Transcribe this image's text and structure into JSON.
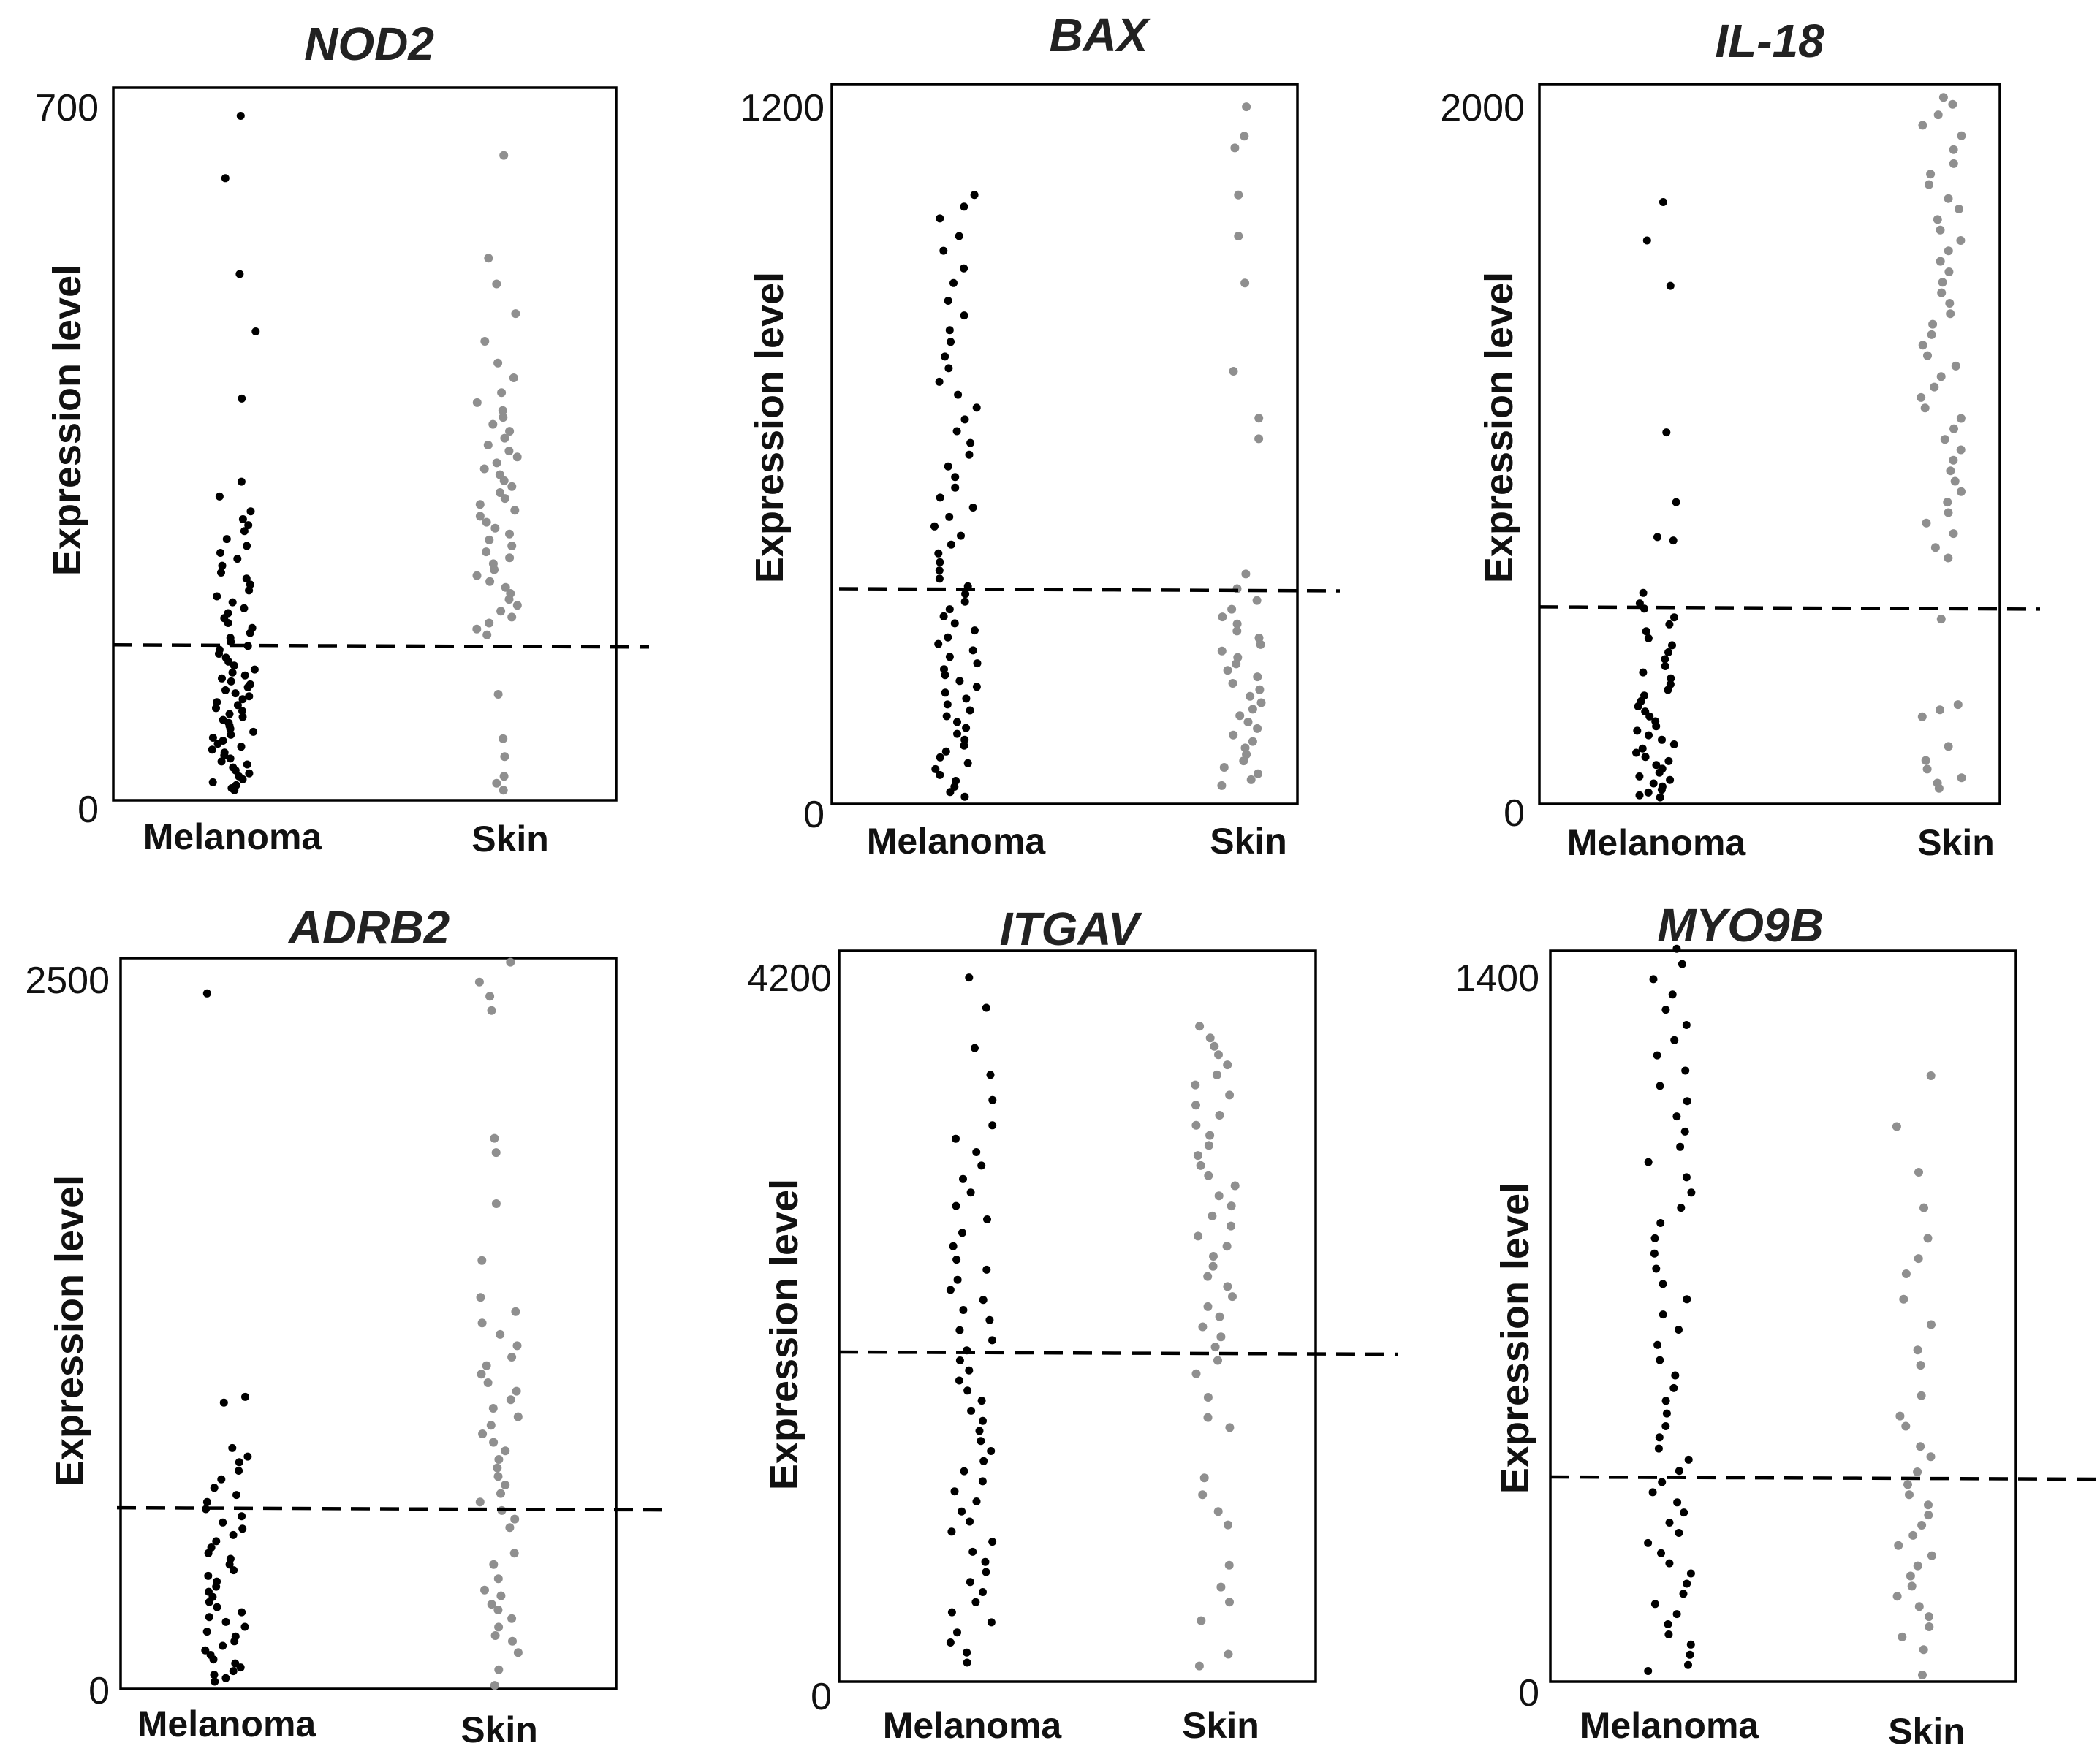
{
  "chart_data": [
    {
      "type": "scatter",
      "title": "NOD2",
      "ylabel": "Expression level",
      "categories": [
        "Melanoma",
        "Skin"
      ],
      "ylim": [
        0,
        700
      ],
      "yticks": [
        "0",
        "700"
      ],
      "threshold": 155,
      "colors": {
        "Melanoma": "#000000",
        "Skin": "#8f8f8f"
      },
      "series": [
        {
          "name": "Melanoma",
          "values": [
            690,
            627,
            530,
            472,
            404,
            320,
            305,
            290,
            282,
            276,
            270,
            262,
            255,
            248,
            242,
            235,
            228,
            222,
            216,
            210,
            204,
            198,
            192,
            187,
            182,
            177,
            172,
            167,
            162,
            158,
            154,
            150,
            146,
            142,
            138,
            134,
            130,
            127,
            124,
            121,
            118,
            115,
            112,
            109,
            106,
            103,
            100,
            97,
            94,
            91,
            88,
            85,
            82,
            79,
            76,
            73,
            70,
            67,
            64,
            61,
            58,
            55,
            52,
            49,
            46,
            43,
            40,
            37,
            34,
            31,
            28,
            25,
            22,
            19,
            16,
            13,
            10,
            8
          ]
        },
        {
          "name": "Skin",
          "values": [
            650,
            546,
            520,
            490,
            462,
            440,
            425,
            410,
            400,
            392,
            385,
            378,
            371,
            364,
            357,
            351,
            345,
            339,
            333,
            327,
            321,
            315,
            309,
            303,
            297,
            291,
            285,
            279,
            273,
            267,
            261,
            255,
            249,
            243,
            237,
            231,
            225,
            219,
            213,
            207,
            201,
            195,
            189,
            183,
            177,
            171,
            165,
            105,
            60,
            42,
            22,
            15,
            8
          ]
        }
      ]
    },
    {
      "type": "scatter",
      "title": "BAX",
      "ylabel": "Expression level",
      "categories": [
        "Melanoma",
        "Skin"
      ],
      "ylim": [
        0,
        1200
      ],
      "yticks": [
        "0",
        "1200"
      ],
      "threshold": 360,
      "colors": {
        "Melanoma": "#000000",
        "Skin": "#8f8f8f"
      },
      "series": [
        {
          "name": "Melanoma",
          "values": [
            1030,
            1010,
            990,
            960,
            935,
            905,
            880,
            850,
            825,
            800,
            780,
            755,
            735,
            712,
            690,
            668,
            648,
            628,
            608,
            588,
            568,
            550,
            532,
            515,
            498,
            482,
            466,
            450,
            435,
            420,
            405,
            391,
            377,
            364,
            351,
            338,
            325,
            313,
            301,
            289,
            277,
            266,
            255,
            244,
            233,
            223,
            213,
            203,
            193,
            183,
            173,
            163,
            153,
            143,
            133,
            123,
            113,
            103,
            93,
            83,
            73,
            63,
            53,
            43,
            33,
            23,
            14,
            6
          ]
        },
        {
          "name": "Skin",
          "values": [
            1180,
            1130,
            1110,
            1030,
            960,
            880,
            730,
            650,
            615,
            385,
            360,
            340,
            325,
            312,
            300,
            288,
            276,
            265,
            254,
            243,
            232,
            221,
            210,
            199,
            188,
            177,
            166,
            155,
            144,
            133,
            122,
            111,
            100,
            89,
            78,
            67,
            56,
            45,
            35,
            25
          ]
        }
      ]
    },
    {
      "type": "scatter",
      "title": "IL-18",
      "ylabel": "Expression level",
      "categories": [
        "Melanoma",
        "Skin"
      ],
      "ylim": [
        0,
        2000
      ],
      "yticks": [
        "0",
        "2000"
      ],
      "threshold": 550,
      "colors": {
        "Melanoma": "#000000",
        "Skin": "#8f8f8f"
      },
      "series": [
        {
          "name": "Melanoma",
          "values": [
            1710,
            1600,
            1470,
            1050,
            850,
            750,
            740,
            590,
            560,
            545,
            520,
            500,
            480,
            460,
            440,
            420,
            400,
            380,
            362,
            345,
            328,
            312,
            296,
            280,
            265,
            250,
            236,
            222,
            208,
            195,
            182,
            169,
            156,
            144,
            132,
            120,
            108,
            97,
            86,
            75,
            64,
            54,
            44,
            35,
            26,
            18,
            10,
            4
          ]
        },
        {
          "name": "Skin",
          "values": [
            2010,
            1990,
            1960,
            1930,
            1900,
            1860,
            1820,
            1790,
            1760,
            1720,
            1690,
            1660,
            1630,
            1600,
            1570,
            1540,
            1510,
            1480,
            1450,
            1420,
            1390,
            1360,
            1330,
            1300,
            1270,
            1240,
            1210,
            1180,
            1150,
            1120,
            1090,
            1060,
            1030,
            1000,
            970,
            940,
            910,
            880,
            850,
            820,
            790,
            760,
            720,
            690,
            515,
            270,
            255,
            235,
            150,
            110,
            85,
            60,
            45,
            30
          ]
        }
      ]
    },
    {
      "type": "scatter",
      "title": "ADRB2",
      "ylabel": "Expression level",
      "categories": [
        "Melanoma",
        "Skin"
      ],
      "ylim": [
        0,
        2500
      ],
      "yticks": [
        "0",
        "2500"
      ],
      "threshold": 630,
      "colors": {
        "Melanoma": "#000000",
        "Skin": "#8f8f8f"
      },
      "series": [
        {
          "name": "Melanoma",
          "values": [
            2440,
            1020,
            1000,
            840,
            810,
            790,
            760,
            730,
            700,
            675,
            650,
            625,
            600,
            578,
            556,
            534,
            512,
            490,
            470,
            450,
            430,
            410,
            390,
            370,
            352,
            334,
            316,
            298,
            280,
            262,
            245,
            228,
            211,
            194,
            177,
            160,
            144,
            128,
            112,
            96,
            82,
            68,
            55,
            42,
            30,
            18
          ]
        },
        {
          "name": "Skin",
          "values": [
            2550,
            2480,
            2430,
            2380,
            1930,
            1880,
            1700,
            1500,
            1370,
            1320,
            1280,
            1240,
            1200,
            1160,
            1130,
            1100,
            1070,
            1040,
            1010,
            980,
            950,
            920,
            890,
            860,
            830,
            800,
            770,
            740,
            710,
            680,
            650,
            620,
            590,
            560,
            470,
            430,
            380,
            340,
            320,
            290,
            270,
            240,
            210,
            180,
            160,
            120,
            60,
            5
          ]
        }
      ]
    },
    {
      "type": "scatter",
      "title": "ITGAV",
      "ylabel": "Expression level",
      "categories": [
        "Melanoma",
        "Skin"
      ],
      "ylim": [
        0,
        4200
      ],
      "yticks": [
        "0",
        "4200"
      ],
      "threshold": 1950,
      "colors": {
        "Melanoma": "#000000",
        "Skin": "#8f8f8f"
      },
      "series": [
        {
          "name": "Melanoma",
          "values": [
            4180,
            4000,
            3760,
            3600,
            3450,
            3300,
            3220,
            3140,
            3060,
            2980,
            2900,
            2820,
            2740,
            2660,
            2580,
            2500,
            2440,
            2380,
            2320,
            2260,
            2200,
            2140,
            2080,
            2020,
            1960,
            1900,
            1840,
            1780,
            1720,
            1660,
            1600,
            1540,
            1480,
            1420,
            1360,
            1300,
            1240,
            1180,
            1120,
            1060,
            1000,
            940,
            880,
            820,
            760,
            700,
            640,
            580,
            520,
            460,
            400,
            340,
            280,
            220,
            160,
            100
          ]
        },
        {
          "name": "Skin",
          "values": [
            3890,
            3820,
            3770,
            3720,
            3660,
            3600,
            3540,
            3480,
            3420,
            3360,
            3300,
            3240,
            3180,
            3120,
            3060,
            3000,
            2940,
            2880,
            2820,
            2760,
            2700,
            2640,
            2580,
            2520,
            2460,
            2400,
            2340,
            2280,
            2220,
            2160,
            2100,
            2040,
            1980,
            1900,
            1820,
            1680,
            1560,
            1500,
            1200,
            1100,
            1000,
            920,
            680,
            550,
            460,
            350,
            150,
            80
          ]
        }
      ]
    },
    {
      "type": "scatter",
      "title": "MYO9B",
      "ylabel": "Expression level",
      "categories": [
        "Melanoma",
        "Skin"
      ],
      "ylim": [
        0,
        1400
      ],
      "yticks": [
        "0",
        "1400"
      ],
      "threshold": 400,
      "colors": {
        "Melanoma": "#000000",
        "Skin": "#8f8f8f"
      },
      "series": [
        {
          "name": "Melanoma",
          "values": [
            1440,
            1410,
            1380,
            1350,
            1320,
            1290,
            1260,
            1230,
            1200,
            1170,
            1140,
            1110,
            1080,
            1050,
            1020,
            990,
            960,
            930,
            900,
            870,
            840,
            810,
            780,
            750,
            720,
            690,
            660,
            630,
            600,
            575,
            550,
            525,
            500,
            478,
            456,
            434,
            412,
            390,
            370,
            350,
            330,
            310,
            290,
            270,
            250,
            230,
            210,
            190,
            170,
            150,
            130,
            110,
            90,
            70,
            50,
            30,
            18
          ]
        },
        {
          "name": "Skin",
          "values": [
            1190,
            1090,
            1000,
            930,
            870,
            830,
            800,
            750,
            700,
            650,
            620,
            560,
            520,
            500,
            460,
            440,
            410,
            385,
            365,
            345,
            325,
            305,
            285,
            265,
            245,
            225,
            205,
            185,
            165,
            145,
            125,
            105,
            85,
            60,
            10
          ]
        }
      ]
    }
  ]
}
